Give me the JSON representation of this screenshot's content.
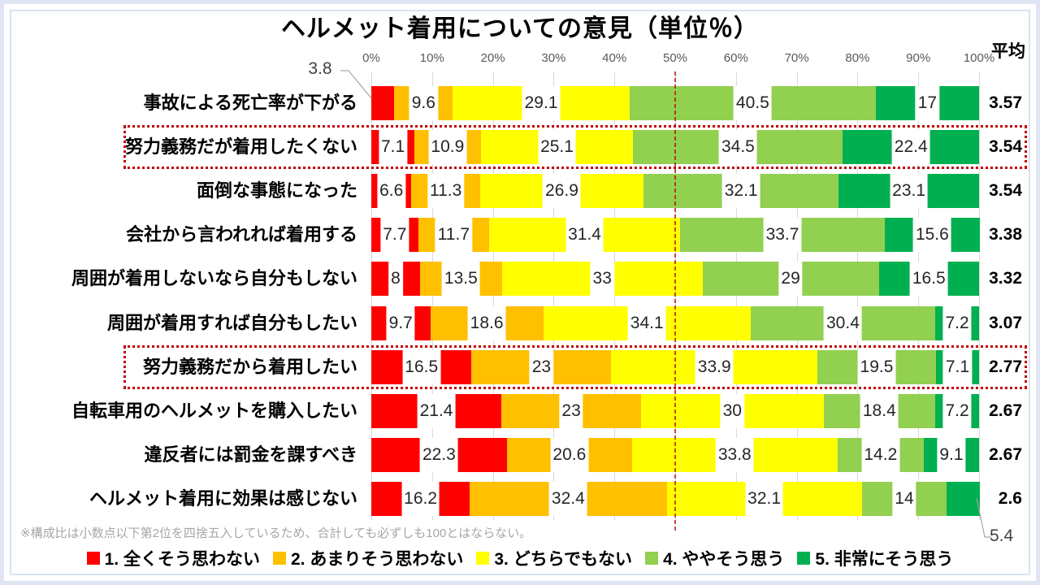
{
  "title": "ヘルメット着用についての意見（単位％）",
  "average_header": "平均",
  "note": "※構成比は小数点以下第2位を四捨五入しているため、合計しても必ずしも100とはならない。",
  "colors": {
    "strongly_disagree": "#ff0000",
    "disagree": "#ffc000",
    "neutral": "#ffff00",
    "agree": "#92d050",
    "strongly_agree": "#00b050",
    "reference_line": "#b40000",
    "highlight_box": "#c00000",
    "gridline": "#d9d9d9",
    "leader_line": "#a6a6a6"
  },
  "chart_data": {
    "type": "bar",
    "subtype": "horizontal-stacked-100pct",
    "title": "ヘルメット着用についての意見（単位％）",
    "x_ticks": [
      "0%",
      "10%",
      "20%",
      "30%",
      "40%",
      "50%",
      "60%",
      "70%",
      "80%",
      "90%",
      "100%"
    ],
    "xlim": [
      0,
      100
    ],
    "grid": true,
    "reference_line_pct": 50,
    "legend_position": "bottom",
    "average_column_header": "平均",
    "series": [
      {
        "name": "1. 全くそう思わない",
        "color": "#ff0000"
      },
      {
        "name": "2. あまりそう思わない",
        "color": "#ffc000"
      },
      {
        "name": "3. どちらでもない",
        "color": "#ffff00"
      },
      {
        "name": "4. ややそう思う",
        "color": "#92d050"
      },
      {
        "name": "5. 非常にそう思う",
        "color": "#00b050"
      }
    ],
    "rows": [
      {
        "label": "事故による死亡率が下がる",
        "values": [
          3.8,
          9.6,
          29.1,
          40.5,
          17
        ],
        "value_labels": [
          "3.8",
          "9.6",
          "29.1",
          "40.5",
          "17"
        ],
        "average": "3.57",
        "highlighted": false
      },
      {
        "label": "努力義務だが着用したくない",
        "values": [
          7.1,
          10.9,
          25.1,
          34.5,
          22.4
        ],
        "value_labels": [
          "7.1",
          "10.9",
          "25.1",
          "34.5",
          "22.4"
        ],
        "average": "3.54",
        "highlighted": true
      },
      {
        "label": "面倒な事態になった",
        "values": [
          6.6,
          11.3,
          26.9,
          32.1,
          23.1
        ],
        "value_labels": [
          "6.6",
          "11.3",
          "26.9",
          "32.1",
          "23.1"
        ],
        "average": "3.54",
        "highlighted": false
      },
      {
        "label": "会社から言われれば着用する",
        "values": [
          7.7,
          11.7,
          31.4,
          33.7,
          15.6
        ],
        "value_labels": [
          "7.7",
          "11.7",
          "31.4",
          "33.7",
          "15.6"
        ],
        "average": "3.38",
        "highlighted": false
      },
      {
        "label": "周囲が着用しないなら自分もしない",
        "values": [
          8,
          13.5,
          33,
          29,
          16.5
        ],
        "value_labels": [
          "8",
          "13.5",
          "33",
          "29",
          "16.5"
        ],
        "average": "3.32",
        "highlighted": false
      },
      {
        "label": "周囲が着用すれば自分もしたい",
        "values": [
          9.7,
          18.6,
          34.1,
          30.4,
          7.2
        ],
        "value_labels": [
          "9.7",
          "18.6",
          "34.1",
          "30.4",
          "7.2"
        ],
        "average": "3.07",
        "highlighted": false
      },
      {
        "label": "努力義務だから着用したい",
        "values": [
          16.5,
          23,
          33.9,
          19.5,
          7.1
        ],
        "value_labels": [
          "16.5",
          "23",
          "33.9",
          "19.5",
          "7.1"
        ],
        "average": "2.77",
        "highlighted": true
      },
      {
        "label": "自転車用のヘルメットを購入したい",
        "values": [
          21.4,
          23,
          30,
          18.4,
          7.2
        ],
        "value_labels": [
          "21.4",
          "23",
          "30",
          "18.4",
          "7.2"
        ],
        "average": "2.67",
        "highlighted": false
      },
      {
        "label": "違反者には罰金を課すべき",
        "values": [
          22.3,
          20.6,
          33.8,
          14.2,
          9.1
        ],
        "value_labels": [
          "22.3",
          "20.6",
          "33.8",
          "14.2",
          "9.1"
        ],
        "average": "2.67",
        "highlighted": false
      },
      {
        "label": "ヘルメット着用に効果は感じない",
        "values": [
          16.2,
          32.4,
          32.1,
          14,
          5.4
        ],
        "value_labels": [
          "16.2",
          "32.4",
          "32.1",
          "14",
          "5.4"
        ],
        "average": "2.6",
        "highlighted": false
      }
    ],
    "callouts": [
      {
        "row": 0,
        "seg": 0,
        "text": "3.8"
      },
      {
        "row": 9,
        "seg": 4,
        "text": "5.4"
      }
    ]
  }
}
